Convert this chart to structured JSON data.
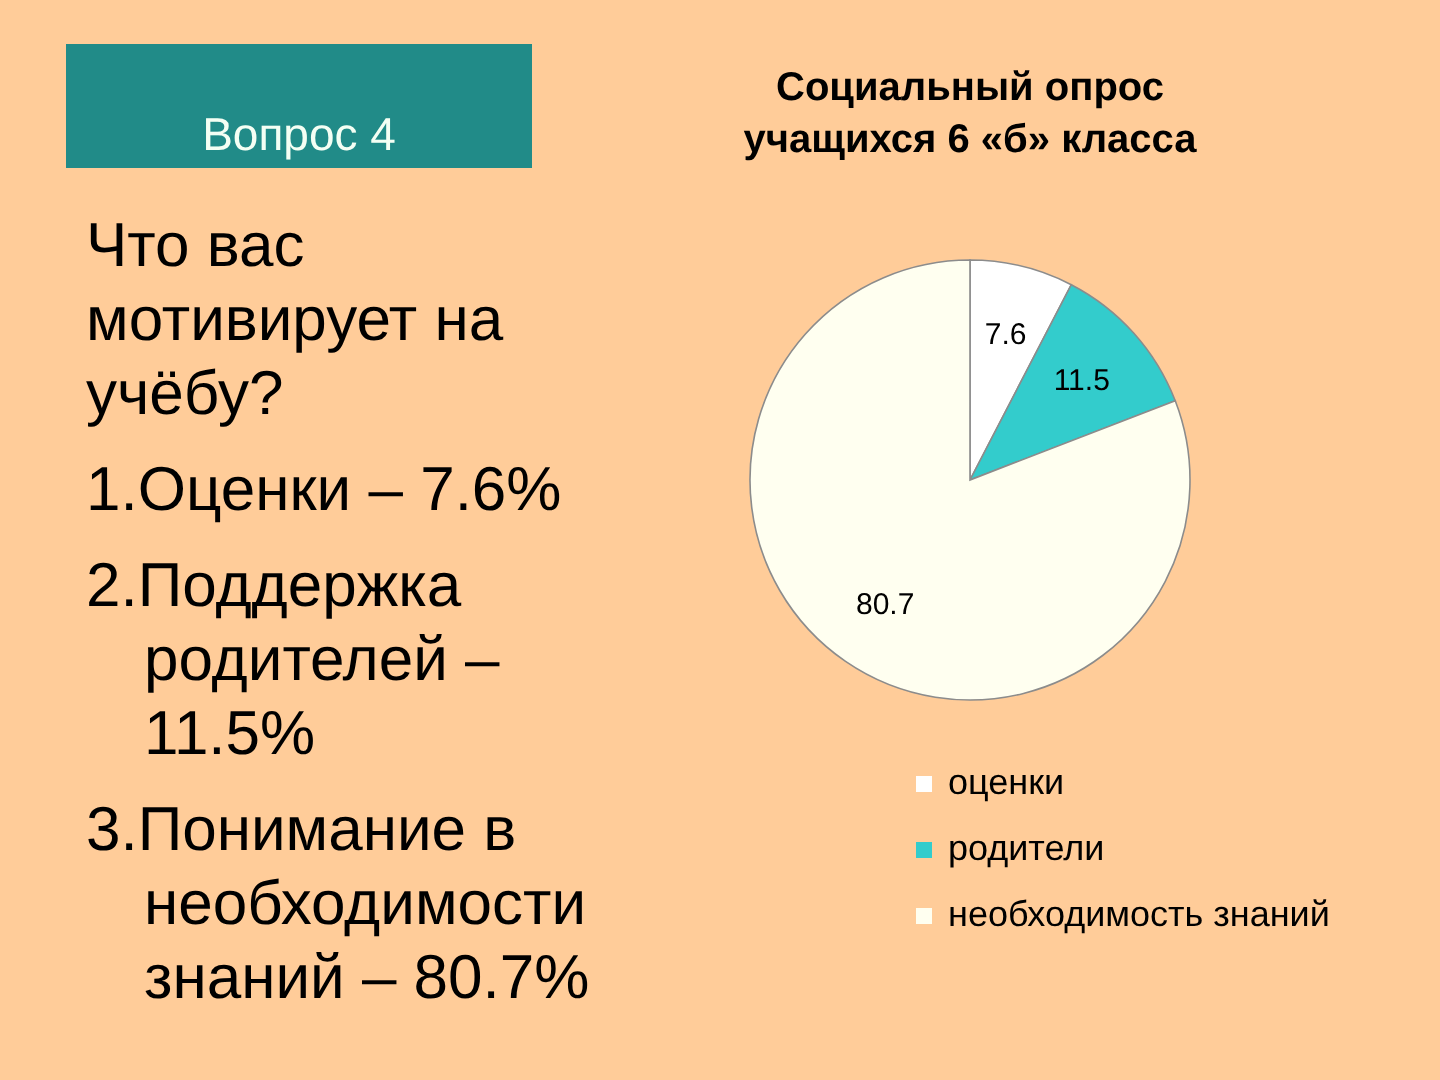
{
  "chart_data": [
    {
      "type": "other",
      "title": "Вопрос 4",
      "subtitle": "Что вас мотивирует на учёбу?",
      "annotations": [
        "1.Оценки – 7.6%",
        "2.Поддержка родителей – 11.5%",
        "3.Понимание в необходимости знаний – 80.7%"
      ]
    },
    {
      "type": "pie",
      "title": "Социальный опрос учащихся 6 «б» класса",
      "categories": [
        "оценки",
        "родители",
        "необходимость знаний"
      ],
      "values": [
        7.6,
        11.5,
        80.7
      ],
      "colors": [
        "#ffffff",
        "#33cccc",
        "#fffff0"
      ],
      "data_labels": true,
      "legend": "bottom"
    }
  ]
}
